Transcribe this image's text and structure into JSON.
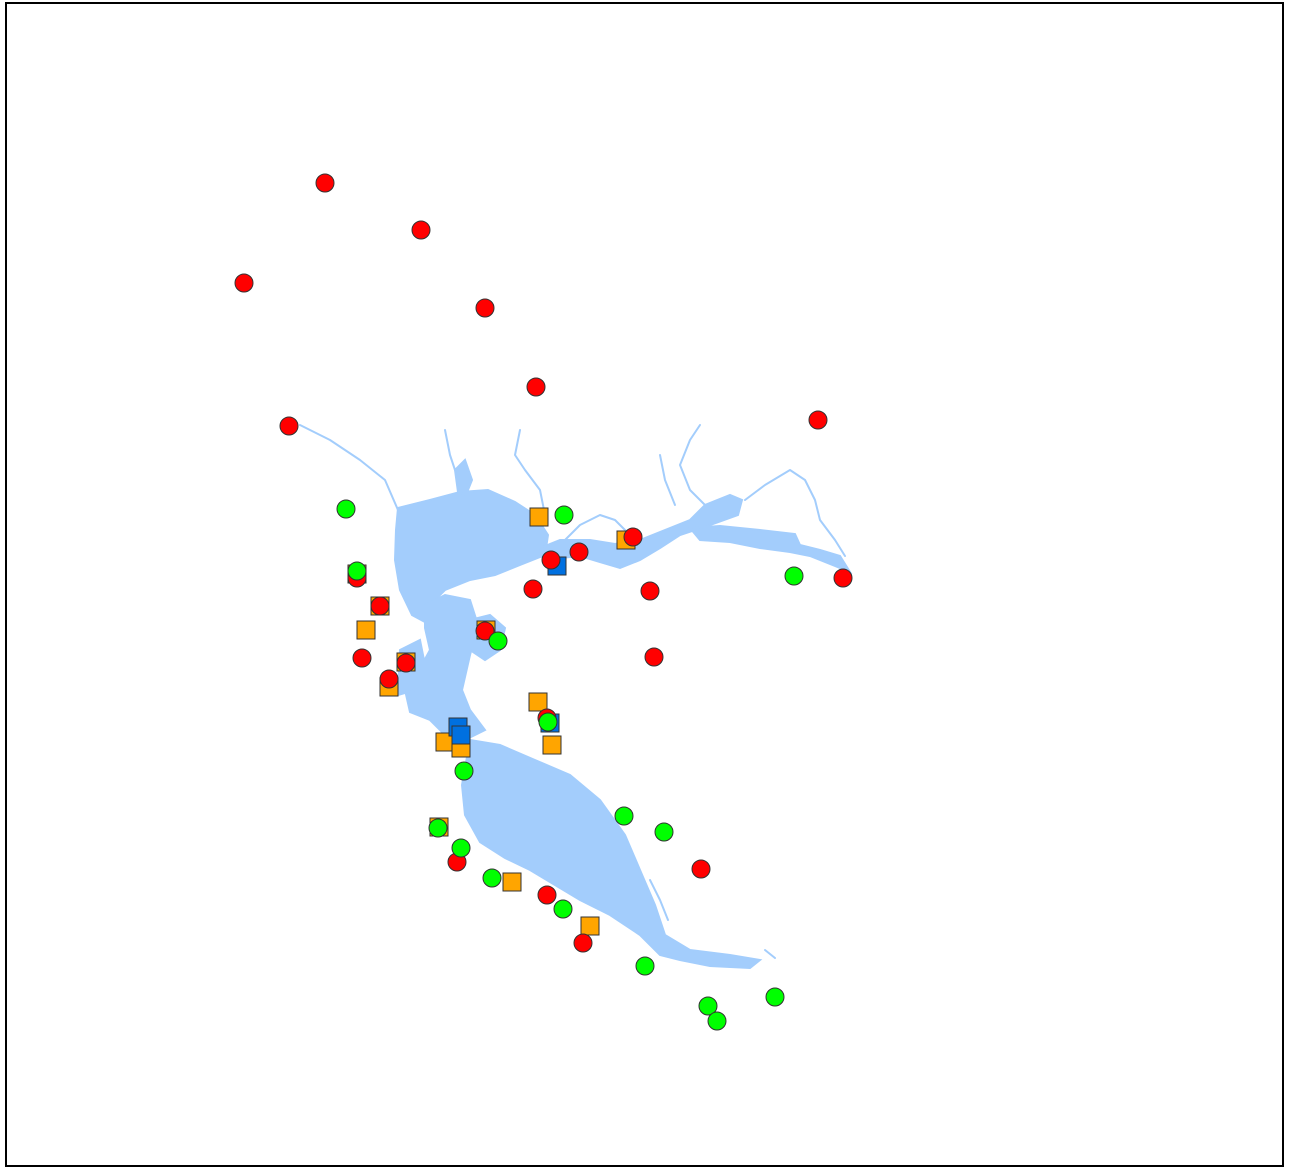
{
  "map": {
    "water_color": "#a3cdfc",
    "frame_color": "#000000",
    "symbols": {
      "red_circle": "#ff0000",
      "green_circle": "#00ff00",
      "orange_square": "#ffa500",
      "blue_square": "#0070e0",
      "outline": "#333333"
    },
    "marker_count": 72
  }
}
